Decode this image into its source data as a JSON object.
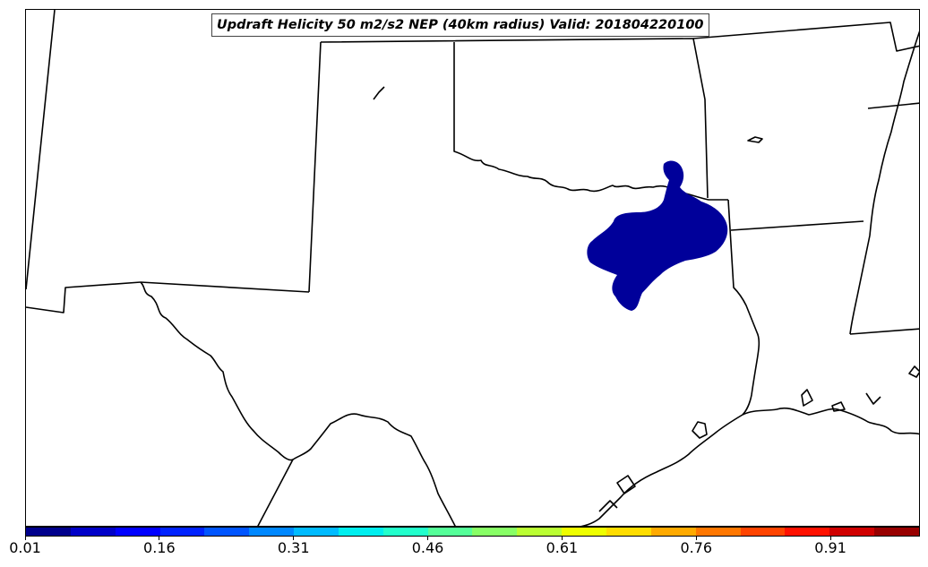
{
  "title": "Updraft Helicity 50 m2/s2 NEP (40km radius) Valid: 201804220100",
  "colorbar": {
    "colors": [
      "#00008c",
      "#0000c8",
      "#0000ff",
      "#0022ff",
      "#0055ff",
      "#0088ff",
      "#00bbff",
      "#00eeee",
      "#22ffcc",
      "#55ff99",
      "#88ff66",
      "#bbff33",
      "#eeff00",
      "#ffdd00",
      "#ffaa00",
      "#ff7700",
      "#ff4400",
      "#ff1100",
      "#d00000",
      "#980000"
    ],
    "tick_labels": [
      "0.01",
      "0.16",
      "0.31",
      "0.46",
      "0.61",
      "0.76",
      "0.91"
    ],
    "tick_values": [
      0.01,
      0.16,
      0.31,
      0.46,
      0.61,
      0.76,
      0.91
    ],
    "range": [
      0.01,
      1.01
    ]
  },
  "probability_area": {
    "color": "#00009a"
  }
}
